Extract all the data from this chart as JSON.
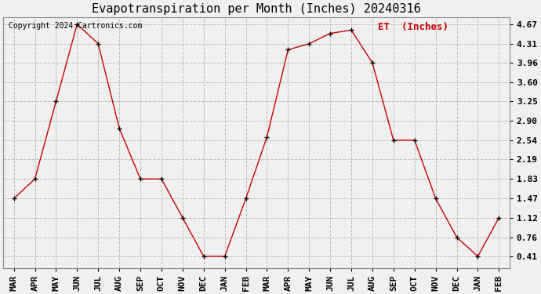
{
  "title": "Evapotranspiration per Month (Inches) 20240316",
  "legend_label": "ET  (Inches)",
  "copyright": "Copyright 2024 Cartronics.com",
  "months": [
    "MAR",
    "APR",
    "MAY",
    "JUN",
    "JUL",
    "AUG",
    "SEP",
    "OCT",
    "NOV",
    "DEC",
    "JAN",
    "FEB",
    "MAR",
    "APR",
    "MAY",
    "JUN",
    "JUL",
    "AUG",
    "SEP",
    "OCT",
    "NOV",
    "DEC",
    "JAN",
    "FEB"
  ],
  "values": [
    1.47,
    1.83,
    3.25,
    4.67,
    4.31,
    2.76,
    1.83,
    1.83,
    1.12,
    0.41,
    0.41,
    1.47,
    2.6,
    4.2,
    4.31,
    4.5,
    4.56,
    3.96,
    2.54,
    2.54,
    1.47,
    0.76,
    0.41,
    1.12
  ],
  "yticks": [
    0.41,
    0.76,
    1.12,
    1.47,
    1.83,
    2.19,
    2.54,
    2.9,
    3.25,
    3.6,
    3.96,
    4.31,
    4.67
  ],
  "ylim": [
    0.2,
    4.8
  ],
  "line_color": "#cc0000",
  "marker_color": "#000000",
  "grid_color": "#bbbbbb",
  "background_color": "#f0f0f0",
  "title_fontsize": 11,
  "tick_fontsize": 8,
  "legend_fontsize": 9,
  "copyright_fontsize": 7
}
